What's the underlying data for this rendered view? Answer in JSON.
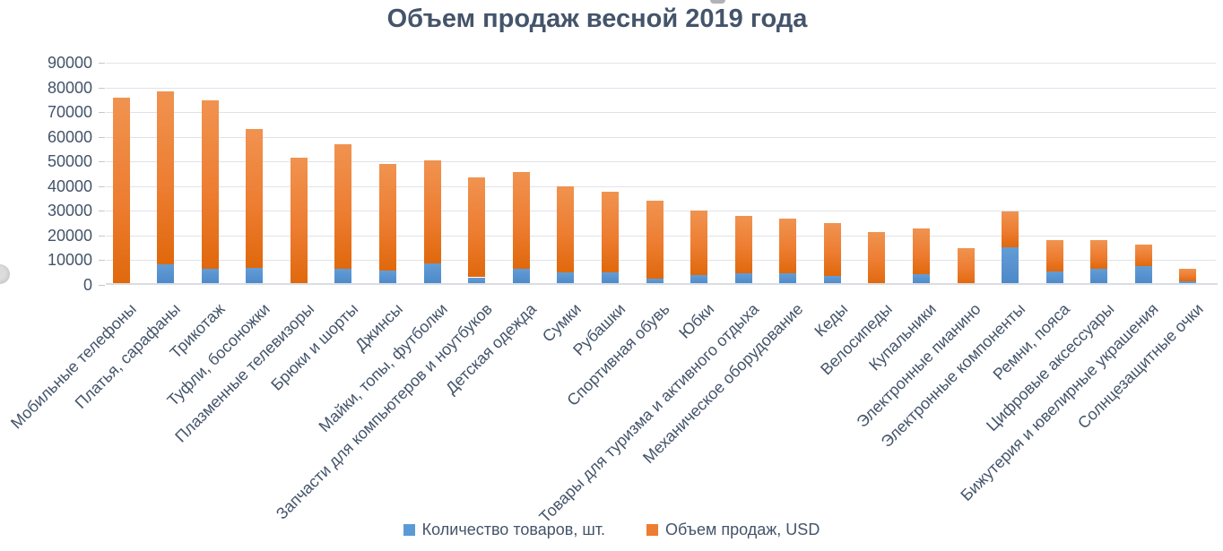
{
  "title": "Объем продаж весной 2019 года",
  "colors": {
    "title_text": "#44546A",
    "axis_text": "#44546A",
    "gridline": "#DFE3EA",
    "axis_line": "#D9DDE3",
    "bar_blue_top": "#639DD6",
    "bar_blue_bottom": "#4C88C8",
    "bar_orange_top": "#F09350",
    "bar_orange_bottom": "#E0680C",
    "legend_blue": "#5B9BD5",
    "legend_orange": "#ED7D31"
  },
  "chart_data": {
    "type": "bar",
    "stacked": true,
    "title": "Объем продаж весной 2019 года",
    "xlabel": "",
    "ylabel": "",
    "ylim": [
      0,
      90000
    ],
    "ytick_step": 10000,
    "yticks": [
      0,
      10000,
      20000,
      30000,
      40000,
      50000,
      60000,
      70000,
      80000,
      90000
    ],
    "grid": true,
    "legend_position": "bottom",
    "categories": [
      "Мобильные телефоны",
      "Платья, сарафаны",
      "Трикотаж",
      "Туфли, босоножки",
      "Плазменные телевизоры",
      "Брюки и шорты",
      "Джинсы",
      "Майки, топы, футболки",
      "Запчасти для компьютеров и ноутбуков",
      "Детская одежда",
      "Сумки",
      "Рубашки",
      "Спортивная обувь",
      "Юбки",
      "Товары для туризма и активного отдыха",
      "Механическое оборудование",
      "Кеды",
      "Велосипеды",
      "Купальники",
      "Электронные пианино",
      "Электронные компоненты",
      "Ремни, пояса",
      "Цифровые аксессуары",
      "Бижутерия и ювелирные украшения",
      "Солнцезащитные очки"
    ],
    "series": [
      {
        "name": "Количество товаров, шт.",
        "color": "#5B9BD5",
        "values": [
          0,
          8500,
          6500,
          7000,
          0,
          6400,
          6000,
          8700,
          3100,
          6600,
          5100,
          5100,
          2600,
          3900,
          4600,
          4600,
          3500,
          0,
          4400,
          0,
          15400,
          5300,
          6400,
          7800,
          1400
        ]
      },
      {
        "name": "Объем продаж, USD",
        "color": "#ED7D31",
        "values": [
          76000,
          70000,
          68300,
          56200,
          51500,
          50700,
          43000,
          41800,
          40600,
          39100,
          34900,
          32500,
          31700,
          26100,
          23300,
          22100,
          21400,
          21600,
          18300,
          14900,
          14500,
          12700,
          11700,
          8700,
          5200
        ]
      }
    ],
    "totals": [
      76000,
      78500,
      74800,
      63200,
      51500,
      57100,
      49000,
      50500,
      43700,
      45700,
      40000,
      37600,
      34300,
      30000,
      27900,
      26700,
      24900,
      21600,
      22700,
      14900,
      29900,
      18000,
      18100,
      16500,
      6600
    ]
  }
}
